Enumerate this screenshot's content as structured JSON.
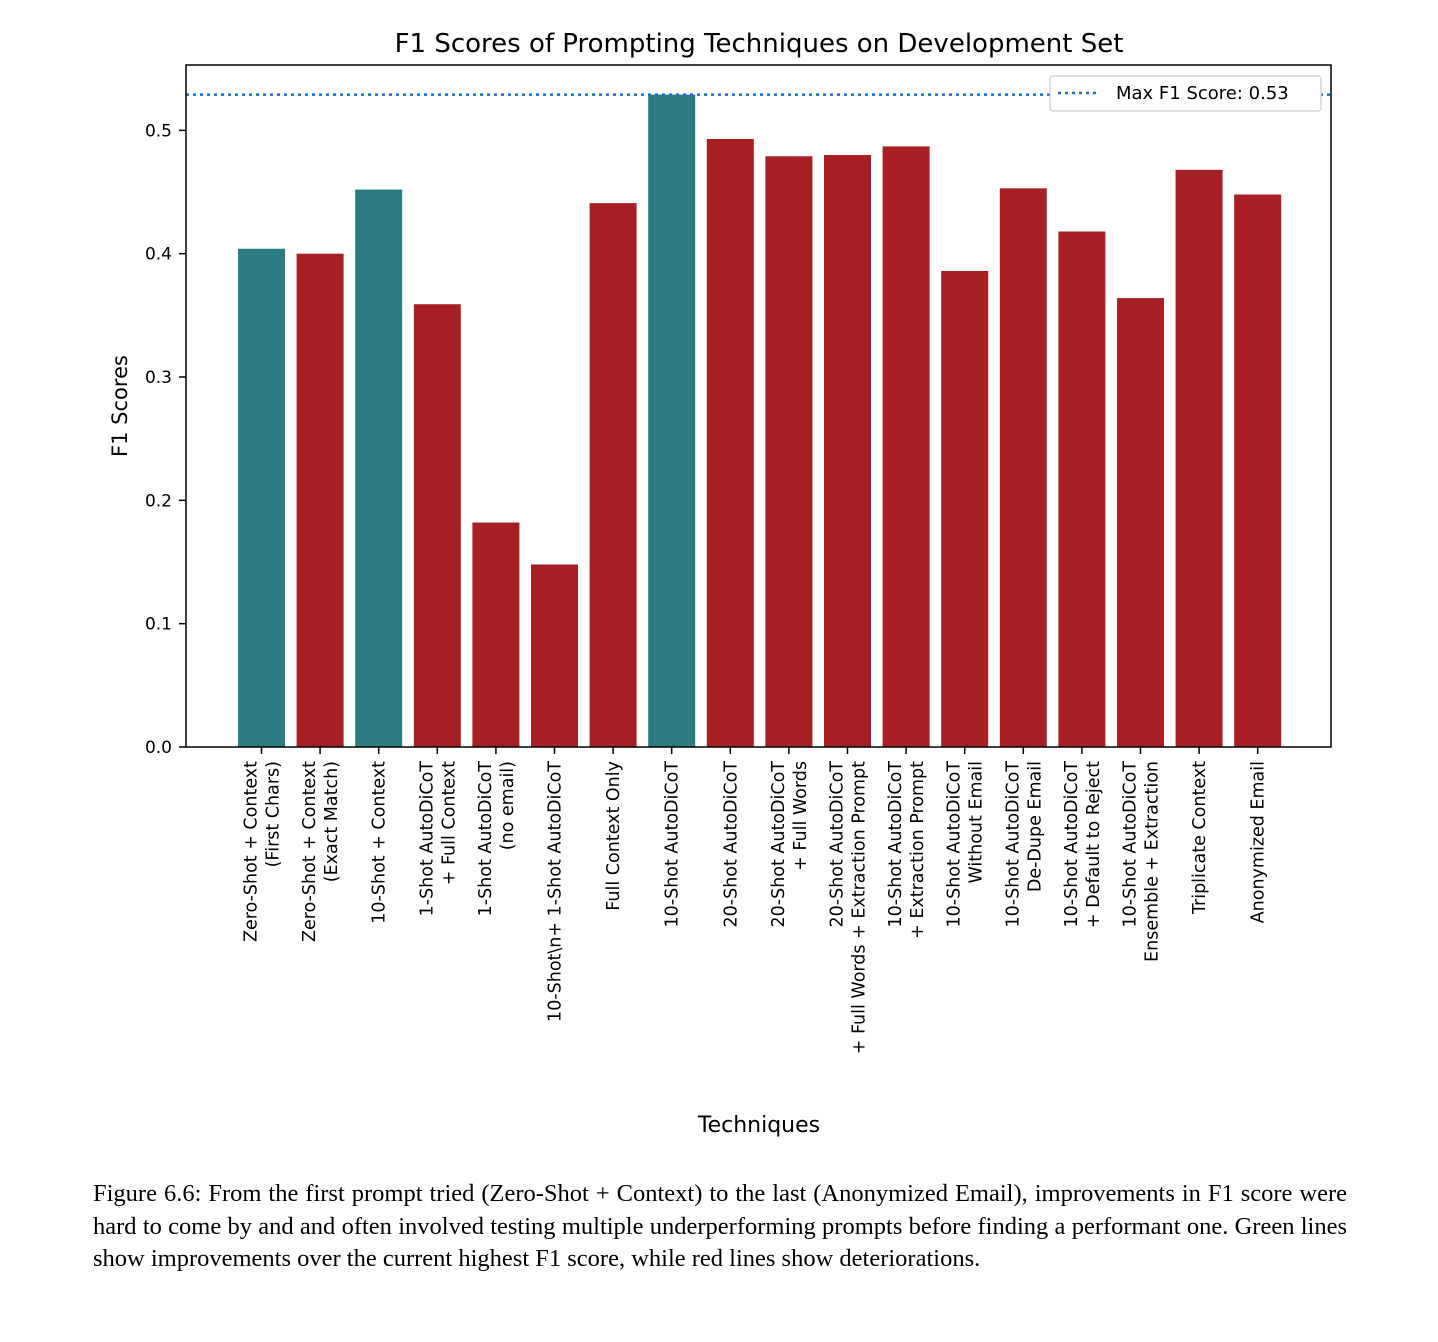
{
  "chart_data": {
    "type": "bar",
    "title": "F1 Scores of Prompting Techniques on Development Set",
    "xlabel": "Techniques",
    "ylabel": "F1 Scores",
    "ylim": [
      0,
      0.553
    ],
    "yticks": [
      "0.0",
      "0.1",
      "0.2",
      "0.3",
      "0.4",
      "0.5"
    ],
    "grid": false,
    "legend_position": "top-right",
    "categories": [
      "Zero-Shot + Context\n(First Chars)",
      "Zero-Shot + Context\n(Exact Match)",
      "10-Shot + Context",
      "1-Shot AutoDiCoT\n+ Full Context",
      "1-Shot AutoDiCoT\n(no email)",
      "10-Shot\\n+ 1-Shot AutoDiCoT",
      "Full Context Only",
      "10-Shot AutoDiCoT",
      "20-Shot AutoDiCoT",
      "20-Shot AutoDiCoT\n+ Full Words",
      "20-Shot AutoDiCoT\n+ Full Words + Extraction Prompt",
      "10-Shot AutoDiCoT\n+ Extraction Prompt",
      "10-Shot AutoDiCoT\nWithout Email",
      "10-Shot AutoDiCoT\nDe-Dupe Email",
      "10-Shot AutoDiCoT\n+ Default to Reject",
      "10-Shot AutoDiCoT\nEnsemble + Extraction",
      "Triplicate Context",
      "Anonymized Email"
    ],
    "values": [
      0.404,
      0.4,
      0.452,
      0.359,
      0.182,
      0.148,
      0.441,
      0.529,
      0.493,
      0.479,
      0.48,
      0.487,
      0.386,
      0.453,
      0.418,
      0.364,
      0.468,
      0.448
    ],
    "bar_status": [
      "improvement",
      "deterioration",
      "improvement",
      "deterioration",
      "deterioration",
      "deterioration",
      "deterioration",
      "improvement",
      "deterioration",
      "deterioration",
      "deterioration",
      "deterioration",
      "deterioration",
      "deterioration",
      "deterioration",
      "deterioration",
      "deterioration",
      "deterioration"
    ],
    "colors": {
      "improvement": "#2a7b82",
      "deterioration": "#a61f23",
      "max_line": "#1f6fc9"
    },
    "max_line": {
      "value": 0.529,
      "label": "Max F1 Score: 0.53"
    }
  },
  "caption": "Figure 6.6: From the first prompt tried (Zero-Shot + Context) to the last (Anonymized Email), improvements in F1 score were hard to come by and and often involved testing multiple underperforming prompts before finding a performant one. Green lines show improvements over the current highest F1 score, while red lines show deteriorations."
}
